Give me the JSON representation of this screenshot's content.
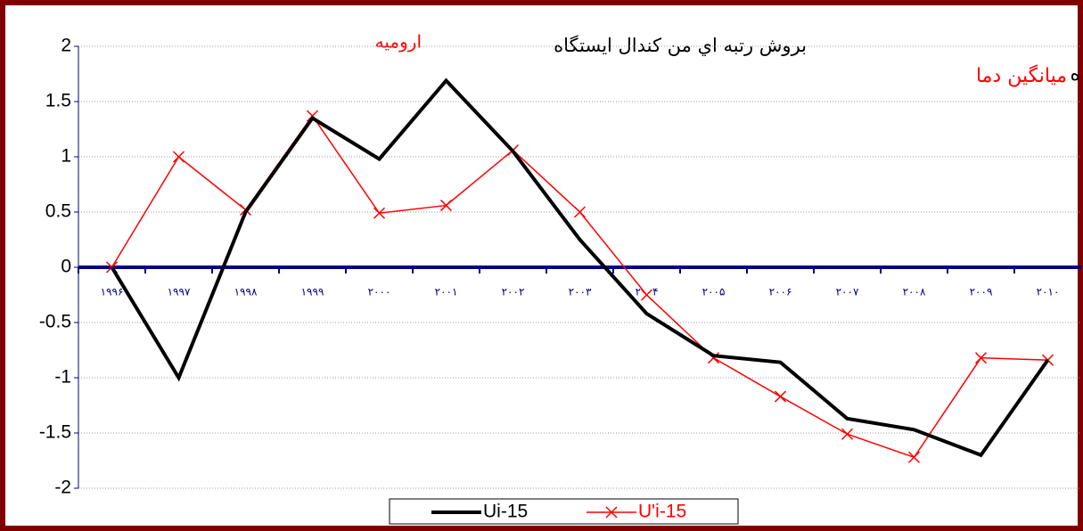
{
  "chart_data": {
    "type": "line",
    "title": "بروش رتبه اي من كندال ايستگاه",
    "station": "اروميه",
    "subtitle": "ميانگين دما",
    "annotation": "ه",
    "categories": [
      "۱۹۹۶",
      "۱۹۹۷",
      "۱۹۹۸",
      "۱۹۹۹",
      "۲۰۰۰",
      "۲۰۰۱",
      "۲۰۰۲",
      "۲۰۰۳",
      "۲۰۰۴",
      "۲۰۰۵",
      "۲۰۰۶",
      "۲۰۰۷",
      "۲۰۰۸",
      "۲۰۰۹",
      "۲۰۱۰"
    ],
    "series": [
      {
        "name": "Ui-15",
        "color": "#000000",
        "marker": null,
        "values": [
          0,
          -1,
          0.5,
          1.35,
          0.98,
          1.69,
          1.05,
          0.25,
          -0.42,
          -0.8,
          -0.86,
          -1.37,
          -1.47,
          -1.7,
          -0.84
        ]
      },
      {
        "name": "U'i-15",
        "color": "#ff0000",
        "marker": "x",
        "values": [
          0,
          1.0,
          0.52,
          1.37,
          0.49,
          0.56,
          1.06,
          0.5,
          -0.25,
          -0.82,
          -1.17,
          -1.51,
          -1.72,
          -0.82,
          -0.84
        ]
      }
    ],
    "ylim": [
      -2,
      2
    ],
    "yticks": [
      2,
      1.5,
      1,
      0.5,
      0,
      -0.5,
      -1,
      -1.5,
      -2
    ],
    "grid": true
  }
}
